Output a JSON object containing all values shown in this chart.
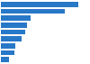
{
  "values": [
    14.5,
    11.9,
    5.5,
    4.9,
    4.5,
    3.8,
    2.7,
    2.5,
    1.5
  ],
  "bar_color": "#2878c8",
  "background_color": "#ffffff",
  "grid_color": "#e0e0e0",
  "xlim": [
    0,
    16.5
  ],
  "bar_height": 0.72,
  "figwidth": 1.0,
  "figheight": 0.71,
  "dpi": 100
}
